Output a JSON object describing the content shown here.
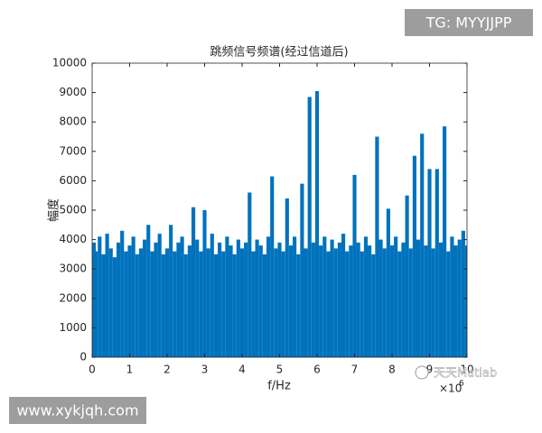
{
  "chart_data": {
    "type": "stem",
    "title": "跳频信号频谱(经过信道后)",
    "x_label": "f/Hz",
    "y_label": "幅度",
    "x_multiplier": {
      "base": "×10",
      "exponent": "6"
    },
    "color": "#0072bd",
    "x": [
      0,
      0.1,
      0.2,
      0.3,
      0.4,
      0.5,
      0.6,
      0.7,
      0.8,
      0.9,
      1,
      1.1,
      1.2,
      1.3,
      1.4,
      1.5,
      1.6,
      1.7,
      1.8,
      1.9,
      2,
      2.1,
      2.2,
      2.3,
      2.4,
      2.5,
      2.6,
      2.7,
      2.8,
      2.9,
      3,
      3.1,
      3.2,
      3.3,
      3.4,
      3.5,
      3.6,
      3.7,
      3.8,
      3.9,
      4,
      4.1,
      4.2,
      4.3,
      4.4,
      4.5,
      4.6,
      4.7,
      4.8,
      4.9,
      5,
      5.1,
      5.2,
      5.3,
      5.4,
      5.5,
      5.6,
      5.7,
      5.8,
      5.9,
      6,
      6.1,
      6.2,
      6.3,
      6.4,
      6.5,
      6.6,
      6.7,
      6.8,
      6.9,
      7,
      7.1,
      7.2,
      7.3,
      7.4,
      7.5,
      7.6,
      7.7,
      7.8,
      7.9,
      8,
      8.1,
      8.2,
      8.3,
      8.4,
      8.5,
      8.6,
      8.7,
      8.8,
      8.9,
      9,
      9.1,
      9.2,
      9.3,
      9.4,
      9.5,
      9.6,
      9.7,
      9.8,
      9.9,
      10
    ],
    "values": [
      3900,
      3600,
      4100,
      3500,
      4200,
      3700,
      3400,
      3900,
      4300,
      3600,
      3800,
      4100,
      3500,
      3700,
      4000,
      4500,
      3600,
      3900,
      4200,
      3500,
      3700,
      4500,
      3600,
      3900,
      4100,
      3500,
      3800,
      5100,
      4000,
      3600,
      5000,
      3700,
      4200,
      3500,
      3900,
      3600,
      4100,
      3800,
      3500,
      4000,
      3700,
      3900,
      5600,
      3600,
      4000,
      3800,
      3500,
      4100,
      6150,
      3700,
      3900,
      3600,
      5400,
      3800,
      4100,
      3500,
      5900,
      3700,
      8850,
      3900,
      9050,
      3800,
      4100,
      3600,
      4000,
      3700,
      3900,
      4200,
      3600,
      3800,
      6200,
      3900,
      3600,
      4100,
      3800,
      3500,
      7500,
      4000,
      3700,
      5050,
      3800,
      4100,
      3600,
      3900,
      5500,
      3700,
      6850,
      4000,
      7600,
      3800,
      6400,
      3700,
      6400,
      3900,
      7850,
      3600,
      4100,
      3800,
      4000,
      4300,
      3800
    ],
    "xlim": [
      0,
      10
    ],
    "ylim": [
      0,
      10000
    ],
    "xticks": [
      0,
      1,
      2,
      3,
      4,
      5,
      6,
      7,
      8,
      9,
      10
    ],
    "yticks": [
      0,
      1000,
      2000,
      3000,
      4000,
      5000,
      6000,
      7000,
      8000,
      9000,
      10000
    ]
  },
  "watermarks": [
    "TG: MYYJJPP",
    "www.xykjqh.com",
    "天天Matlab"
  ]
}
